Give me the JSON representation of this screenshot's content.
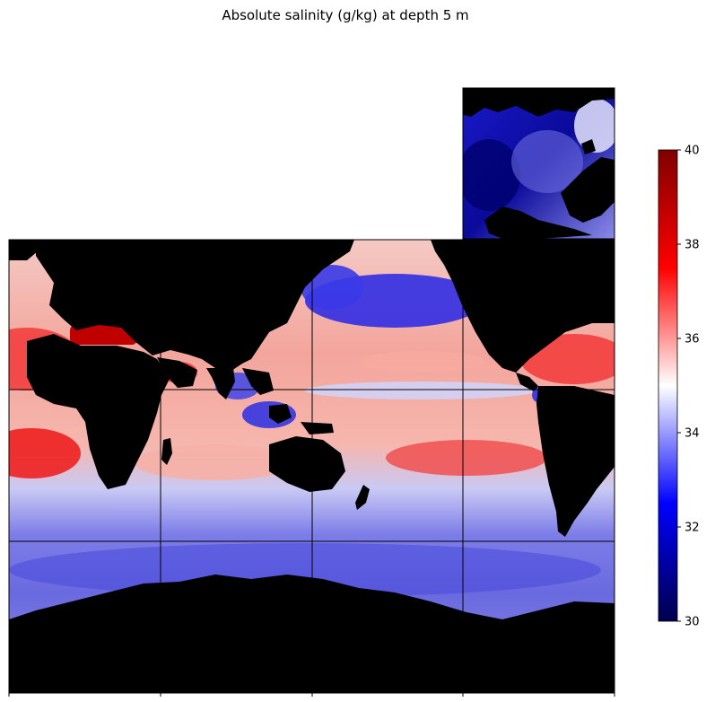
{
  "chart_data": {
    "type": "heatmap",
    "title": "Absolute salinity (g/kg) at depth 5 m",
    "colorbar": {
      "cmap": "seismic",
      "vmin": 30,
      "vmax": 40,
      "ticks": [
        30,
        32,
        34,
        36,
        38,
        40
      ],
      "tick_labels": [
        "30",
        "32",
        "34",
        "36",
        "38",
        "40"
      ]
    },
    "grid": true,
    "panels": [
      {
        "name": "tile-global",
        "grid_columns": 4,
        "grid_rows": 3
      },
      {
        "name": "tile-arctic",
        "grid_columns": 1,
        "grid_rows": 1
      }
    ],
    "land_color": "#000000",
    "colors": {
      "low": "#00004c",
      "mid": "#ffffff",
      "high": "#800000"
    }
  }
}
